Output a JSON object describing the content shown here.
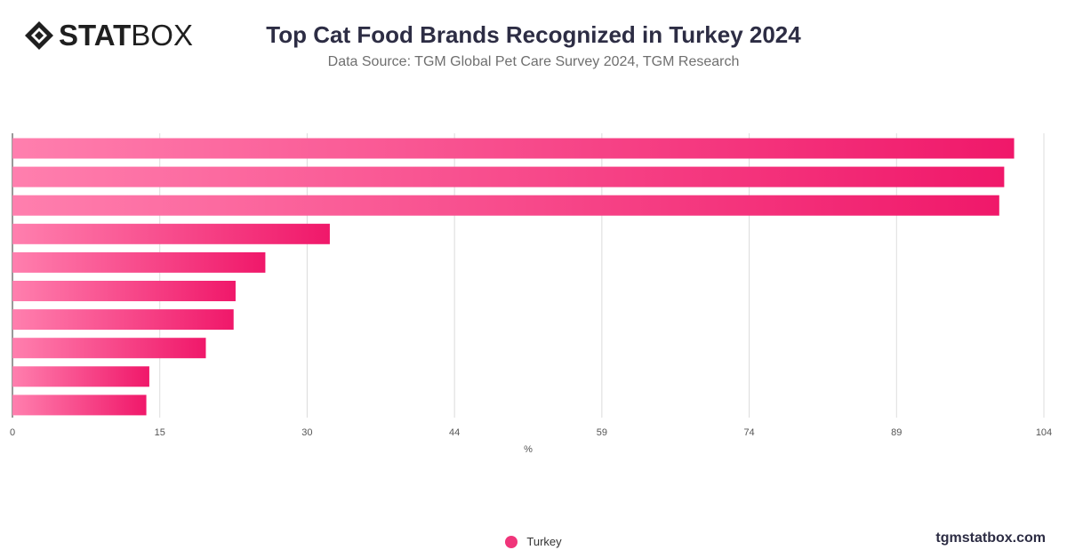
{
  "header": {
    "logo_bold": "STAT",
    "logo_light": "BOX",
    "title": "Top Cat Food Brands Recognized in Turkey 2024",
    "subtitle": "Data Source: TGM Global Pet Care Survey 2024, TGM Research"
  },
  "footer": {
    "site": "tgmstatbox.com"
  },
  "legend": {
    "label": "Turkey",
    "color": "#f0357a"
  },
  "colors": {
    "bar_start": "#ff7fae",
    "bar_end": "#f0186a",
    "grid": "#dcdcdc"
  },
  "chart_data": {
    "type": "bar",
    "orientation": "horizontal",
    "xlabel": "%",
    "xlim": [
      0,
      104
    ],
    "xticks": [
      "0",
      "15",
      "30",
      "44",
      "59",
      "74",
      "89",
      "104"
    ],
    "grid": true,
    "legend_position": "bottom-center",
    "series": [
      {
        "name": "Turkey",
        "values": [
          101,
          100,
          99.5,
          32,
          25.5,
          22.5,
          22.3,
          19.5,
          13.8,
          13.5
        ]
      }
    ]
  }
}
